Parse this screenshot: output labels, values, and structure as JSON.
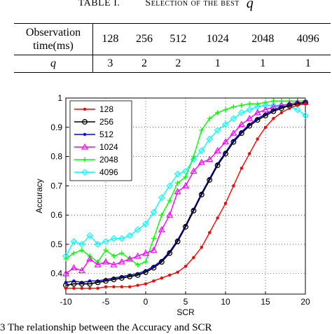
{
  "table": {
    "title_prefix": "TABLE I.",
    "title_main": "Selection of the best",
    "title_symbol": "q",
    "row1_header": [
      "Observation",
      "time(ms)"
    ],
    "row1_values": [
      "128",
      "256",
      "512",
      "1024",
      "2048",
      "4096"
    ],
    "row2_header": "q",
    "row2_values": [
      "3",
      "2",
      "2",
      "1",
      "1",
      "1"
    ]
  },
  "figure_caption": "3 The relationship between the Accuracy and SCR",
  "chart_data": {
    "type": "line",
    "title": "",
    "xlabel": "SCR",
    "ylabel": "Accuracy",
    "xlim": [
      -10,
      20
    ],
    "ylim": [
      0.33,
      1.0
    ],
    "x_ticks": [
      -10,
      -5,
      0,
      5,
      10,
      15,
      20
    ],
    "y_ticks": [
      0.4,
      0.5,
      0.6,
      0.7,
      0.8,
      0.9,
      1
    ],
    "grid": true,
    "legend_position": "top-left",
    "x": [
      -10,
      -9,
      -8,
      -7,
      -6,
      -5,
      -4,
      -3,
      -2,
      -1,
      0,
      1,
      2,
      3,
      4,
      5,
      6,
      7,
      8,
      9,
      10,
      11,
      12,
      13,
      14,
      15,
      16,
      17,
      18,
      19,
      20
    ],
    "series": [
      {
        "name": "128",
        "color": "#ff0000",
        "marker": "dot",
        "values": [
          0.35,
          0.35,
          0.35,
          0.35,
          0.35,
          0.355,
          0.355,
          0.355,
          0.355,
          0.36,
          0.365,
          0.375,
          0.385,
          0.395,
          0.405,
          0.425,
          0.455,
          0.49,
          0.54,
          0.59,
          0.64,
          0.7,
          0.76,
          0.81,
          0.86,
          0.9,
          0.93,
          0.95,
          0.965,
          0.975,
          0.98
        ]
      },
      {
        "name": "256",
        "color": "#000000",
        "marker": "circle",
        "values": [
          0.36,
          0.365,
          0.365,
          0.365,
          0.37,
          0.375,
          0.38,
          0.385,
          0.39,
          0.395,
          0.405,
          0.42,
          0.44,
          0.47,
          0.51,
          0.56,
          0.615,
          0.67,
          0.72,
          0.77,
          0.81,
          0.85,
          0.88,
          0.905,
          0.925,
          0.94,
          0.955,
          0.965,
          0.975,
          0.98,
          0.985
        ]
      },
      {
        "name": "512",
        "color": "#0000ff",
        "marker": "dot",
        "values": [
          0.37,
          0.375,
          0.37,
          0.375,
          0.375,
          0.38,
          0.385,
          0.39,
          0.395,
          0.4,
          0.41,
          0.425,
          0.445,
          0.475,
          0.515,
          0.565,
          0.62,
          0.675,
          0.725,
          0.775,
          0.815,
          0.855,
          0.885,
          0.91,
          0.93,
          0.945,
          0.96,
          0.97,
          0.975,
          0.98,
          0.985
        ]
      },
      {
        "name": "1024",
        "color": "#ff00ff",
        "marker": "triangle",
        "values": [
          0.4,
          0.42,
          0.41,
          0.45,
          0.43,
          0.44,
          0.43,
          0.44,
          0.45,
          0.46,
          0.47,
          0.48,
          0.55,
          0.6,
          0.68,
          0.7,
          0.75,
          0.78,
          0.79,
          0.82,
          0.85,
          0.88,
          0.91,
          0.93,
          0.95,
          0.96,
          0.97,
          0.975,
          0.98,
          0.985,
          0.985
        ]
      },
      {
        "name": "2048",
        "color": "#00ff00",
        "marker": "plus",
        "values": [
          0.45,
          0.47,
          0.48,
          0.46,
          0.44,
          0.48,
          0.46,
          0.47,
          0.45,
          0.43,
          0.44,
          0.52,
          0.6,
          0.65,
          0.71,
          0.73,
          0.8,
          0.89,
          0.93,
          0.95,
          0.96,
          0.97,
          0.975,
          0.98,
          0.98,
          0.985,
          0.99,
          0.99,
          0.99,
          0.99,
          0.99
        ]
      },
      {
        "name": "4096",
        "color": "#00ffff",
        "marker": "diamond",
        "values": [
          0.46,
          0.51,
          0.5,
          0.53,
          0.5,
          0.51,
          0.52,
          0.52,
          0.53,
          0.55,
          0.57,
          0.61,
          0.66,
          0.7,
          0.74,
          0.75,
          0.79,
          0.82,
          0.86,
          0.89,
          0.91,
          0.93,
          0.95,
          0.96,
          0.97,
          0.975,
          0.975,
          0.975,
          0.97,
          0.96,
          0.94
        ]
      }
    ]
  }
}
